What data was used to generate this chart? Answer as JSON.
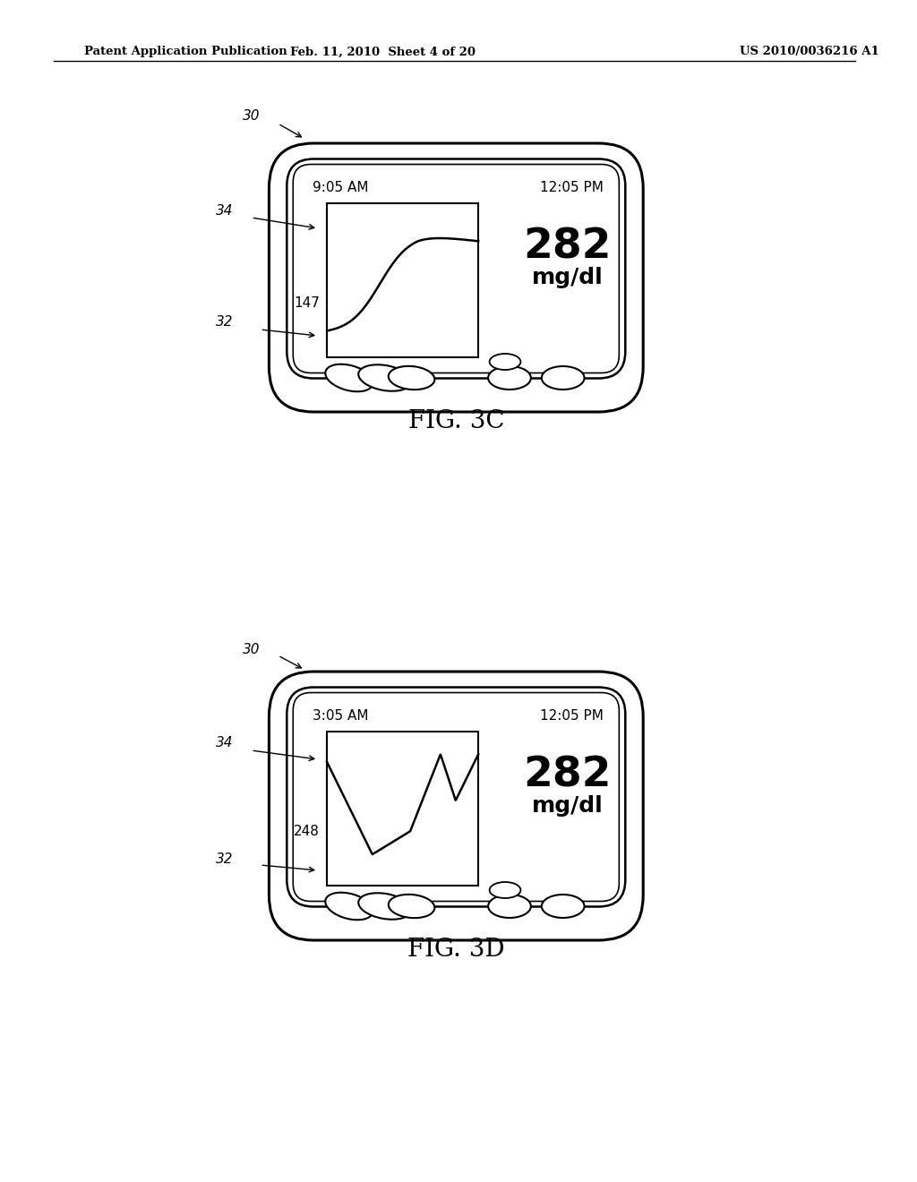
{
  "bg_color": "#ffffff",
  "header_text": "Patent Application Publication",
  "header_date": "Feb. 11, 2010  Sheet 4 of 20",
  "header_patent": "US 2010/0036216 A1",
  "fig3c": {
    "label": "FIG. 3C",
    "time_left": "9:05 AM",
    "time_right": "12:05 PM",
    "glucose_value": "282",
    "glucose_unit": "mg/dl",
    "glucose_left": "147",
    "ref_label_30": "30",
    "ref_label_32": "32",
    "ref_label_34": "34"
  },
  "fig3d": {
    "label": "FIG. 3D",
    "time_left": "3:05 AM",
    "time_right": "12:05 PM",
    "glucose_value": "282",
    "glucose_unit": "mg/dl",
    "glucose_left": "248",
    "ref_label_30": "30",
    "ref_label_32": "32",
    "ref_label_34": "34"
  }
}
